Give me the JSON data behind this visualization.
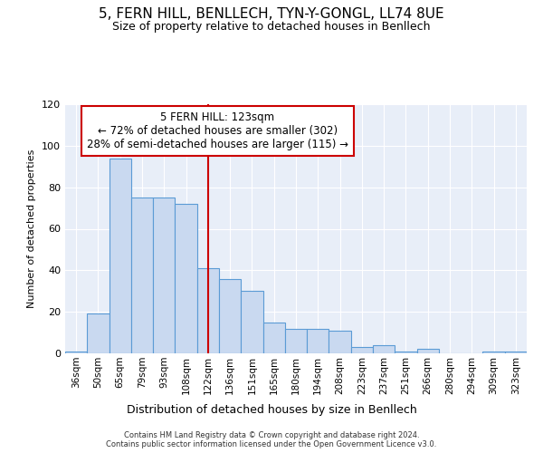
{
  "title1": "5, FERN HILL, BENLLECH, TYN-Y-GONGL, LL74 8UE",
  "title2": "Size of property relative to detached houses in Benllech",
  "xlabel": "Distribution of detached houses by size in Benllech",
  "ylabel": "Number of detached properties",
  "categories": [
    "36sqm",
    "50sqm",
    "65sqm",
    "79sqm",
    "93sqm",
    "108sqm",
    "122sqm",
    "136sqm",
    "151sqm",
    "165sqm",
    "180sqm",
    "194sqm",
    "208sqm",
    "223sqm",
    "237sqm",
    "251sqm",
    "266sqm",
    "280sqm",
    "294sqm",
    "309sqm",
    "323sqm"
  ],
  "values": [
    1,
    19,
    94,
    75,
    75,
    72,
    41,
    36,
    30,
    15,
    12,
    12,
    11,
    3,
    4,
    1,
    2,
    0,
    0,
    1,
    1
  ],
  "bar_color": "#c9d9f0",
  "bar_edge_color": "#5b9bd5",
  "vline_index": 6,
  "vline_color": "#cc0000",
  "annotation_title": "5 FERN HILL: 123sqm",
  "annotation_line1": "← 72% of detached houses are smaller (302)",
  "annotation_line2": "28% of semi-detached houses are larger (115) →",
  "annotation_box_color": "#ffffff",
  "annotation_box_edge": "#cc0000",
  "bg_color": "#ffffff",
  "plot_bg_color": "#e8eef8",
  "footer": "Contains HM Land Registry data © Crown copyright and database right 2024.\nContains public sector information licensed under the Open Government Licence v3.0.",
  "ylim": [
    0,
    120
  ],
  "yticks": [
    0,
    20,
    40,
    60,
    80,
    100,
    120
  ],
  "grid_color": "#ffffff",
  "title1_fontsize": 11,
  "title2_fontsize": 9
}
